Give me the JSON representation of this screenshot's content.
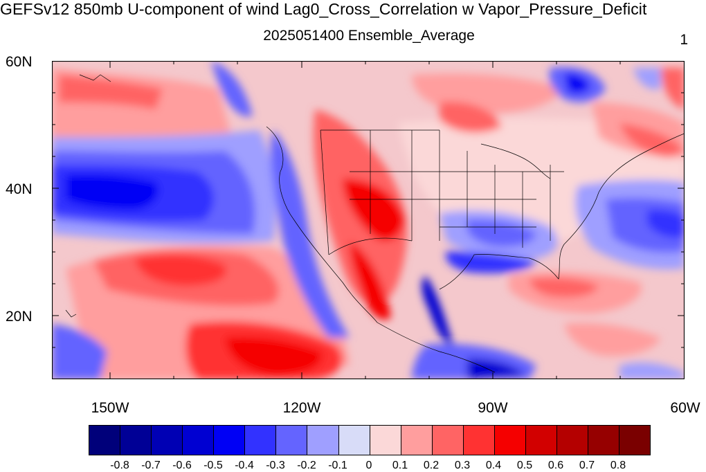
{
  "title": "GEFSv12 850mb U-component of wind Lag0_Cross_Correlation w Vapor_Pressure_Deficit",
  "subtitle": "2025051400 Ensemble_Average",
  "panel_number": "1",
  "map": {
    "lat_labels": [
      "60N",
      "40N",
      "20N"
    ],
    "lon_labels": [
      "150W",
      "120W",
      "90W",
      "60W"
    ],
    "ocean_color": "#d8dcf8",
    "land_color": "#fbd8d8"
  },
  "colorbar": {
    "colors": [
      "#00007a",
      "#000096",
      "#0000b4",
      "#0000d2",
      "#0000f5",
      "#3232ff",
      "#6464ff",
      "#9f9fff",
      "#d8dcf8",
      "#fbd8d8",
      "#ff9e9e",
      "#ff6464",
      "#ff3232",
      "#f50000",
      "#d20000",
      "#b40000",
      "#960000",
      "#7a0000"
    ],
    "labels": [
      "-0.8",
      "-0.7",
      "-0.6",
      "-0.5",
      "-0.4",
      "-0.3",
      "-0.2",
      "-0.1",
      "0",
      "0.1",
      "0.2",
      "0.3",
      "0.4",
      "0.5",
      "0.6",
      "0.7",
      "0.8"
    ]
  }
}
